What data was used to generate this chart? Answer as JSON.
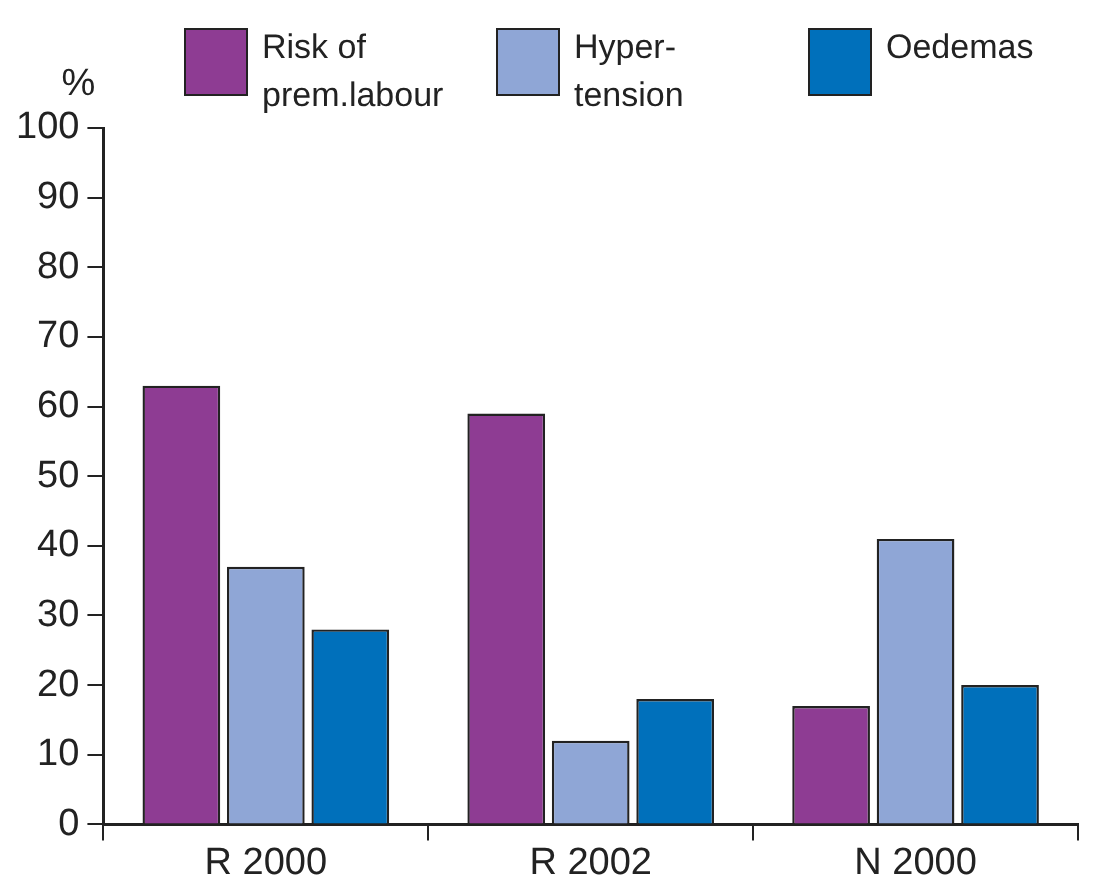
{
  "chart_data": {
    "type": "bar",
    "ylabel": "%",
    "categories": [
      "R 2000",
      "R 2002",
      "N 2000"
    ],
    "series": [
      {
        "name": "Risk of\nprem.labour",
        "color": "#8e3c93",
        "values": [
          63,
          59,
          17
        ]
      },
      {
        "name": "Hyper-\ntension",
        "color": "#8fa6d6",
        "values": [
          37,
          12,
          41
        ]
      },
      {
        "name": "Oedemas",
        "color": "#0070bb",
        "values": [
          28,
          18,
          20
        ]
      }
    ],
    "ylim": [
      0,
      100
    ],
    "yticks": [
      0,
      10,
      20,
      30,
      40,
      50,
      60,
      70,
      80,
      90,
      100
    ],
    "grid": false,
    "legend": "top"
  }
}
